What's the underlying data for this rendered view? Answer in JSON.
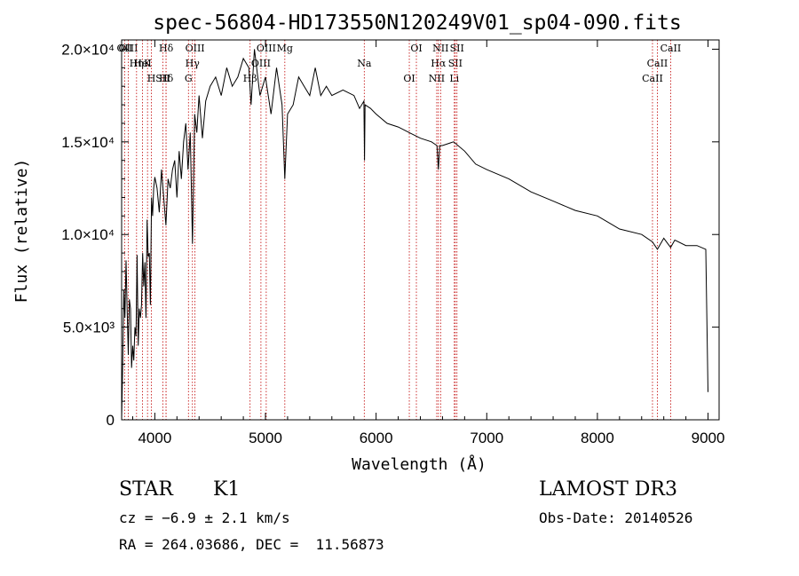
{
  "chart_data": {
    "type": "line",
    "title": "spec-56804-HD173550N120249V01_sp04-090.fits",
    "xlabel": "Wavelength (Å)",
    "ylabel": "Flux (relative)",
    "xlim": [
      3700,
      9100
    ],
    "ylim": [
      0,
      20500
    ],
    "xticks": [
      4000,
      5000,
      6000,
      7000,
      8000,
      9000
    ],
    "yticks": [
      {
        "value": 0,
        "label": "0"
      },
      {
        "value": 5000,
        "label": "5.0×10³"
      },
      {
        "value": 10000,
        "label": "1.0×10⁴"
      },
      {
        "value": 15000,
        "label": "1.5×10⁴"
      },
      {
        "value": 20000,
        "label": "2.0×10⁴"
      }
    ],
    "series": [
      {
        "color": "#000000",
        "x": [
          3700,
          3710,
          3720,
          3730,
          3740,
          3750,
          3760,
          3770,
          3780,
          3790,
          3800,
          3810,
          3820,
          3830,
          3840,
          3850,
          3860,
          3870,
          3880,
          3890,
          3900,
          3910,
          3920,
          3930,
          3940,
          3950,
          3960,
          3970,
          3980,
          3990,
          4000,
          4020,
          4040,
          4060,
          4080,
          4100,
          4120,
          4140,
          4160,
          4180,
          4200,
          4220,
          4240,
          4260,
          4280,
          4300,
          4320,
          4340,
          4360,
          4380,
          4400,
          4430,
          4460,
          4500,
          4550,
          4600,
          4650,
          4700,
          4750,
          4800,
          4850,
          4870,
          4900,
          4950,
          5000,
          5050,
          5100,
          5150,
          5175,
          5200,
          5250,
          5300,
          5350,
          5400,
          5450,
          5500,
          5550,
          5600,
          5700,
          5800,
          5850,
          5890,
          5895,
          5900,
          5950,
          6000,
          6100,
          6200,
          6300,
          6400,
          6500,
          6550,
          6563,
          6575,
          6600,
          6700,
          6800,
          6900,
          7000,
          7200,
          7400,
          7600,
          7800,
          8000,
          8200,
          8400,
          8498,
          8542,
          8600,
          8662,
          8700,
          8800,
          8900,
          8980,
          9000
        ],
        "y": [
          0,
          3000,
          7000,
          5500,
          8600,
          6000,
          3500,
          6500,
          6000,
          2800,
          4000,
          3200,
          5000,
          4500,
          8900,
          4000,
          6000,
          5500,
          6200,
          9000,
          7200,
          8500,
          5500,
          10800,
          8800,
          9000,
          6200,
          12000,
          11000,
          12500,
          13100,
          12500,
          11200,
          13500,
          12000,
          10500,
          13000,
          12500,
          13500,
          14000,
          12000,
          14500,
          13000,
          15000,
          16000,
          13500,
          15500,
          9500,
          16500,
          15500,
          17500,
          15200,
          17200,
          18000,
          18500,
          17500,
          19000,
          18000,
          18500,
          19500,
          19000,
          17000,
          20000,
          17500,
          18500,
          16500,
          19000,
          17000,
          13000,
          16500,
          17000,
          18500,
          18000,
          17500,
          19000,
          17500,
          18000,
          17500,
          17800,
          17500,
          16800,
          17200,
          14000,
          17000,
          16800,
          16500,
          16000,
          15800,
          15500,
          15200,
          15000,
          14800,
          13500,
          14800,
          14800,
          15000,
          14500,
          13800,
          13500,
          13000,
          12300,
          11800,
          11300,
          11000,
          10300,
          10000,
          9600,
          9200,
          9800,
          9300,
          9700,
          9400,
          9400,
          9200,
          1500
        ]
      }
    ],
    "line_annotations": [
      {
        "label": "Hδ",
        "x": 4102
      },
      {
        "label": "K",
        "x": 3934
      },
      {
        "label": "Hδ",
        "x": 4102
      },
      {
        "label": "OII",
        "x": 3727
      },
      {
        "label": "HeI",
        "x": 3889
      },
      {
        "label": "SII",
        "x": 4072
      },
      {
        "label": "OIII",
        "x": 3760
      },
      {
        "label": "Hη",
        "x": 3835
      },
      {
        "label": "H",
        "x": 3969
      },
      {
        "label": "OIII",
        "x": 4363
      },
      {
        "label": "Hγ",
        "x": 4340
      },
      {
        "label": "G",
        "x": 4304
      },
      {
        "label": "OIII",
        "x": 5007
      },
      {
        "label": "OIII",
        "x": 4959
      },
      {
        "label": "Hβ",
        "x": 4861
      },
      {
        "label": "Mg",
        "x": 5175
      },
      {
        "label": "Na",
        "x": 5893
      },
      {
        "label": "OI",
        "x": 6300
      },
      {
        "label": "OI",
        "x": 6364
      },
      {
        "label": "Hα",
        "x": 6563
      },
      {
        "label": "NII",
        "x": 6548
      },
      {
        "label": "NII",
        "x": 6583
      },
      {
        "label": "SII",
        "x": 6716
      },
      {
        "label": "Li",
        "x": 6707
      },
      {
        "label": "SII",
        "x": 6731
      },
      {
        "label": "CaII",
        "x": 8542
      },
      {
        "label": "CaII",
        "x": 8498
      },
      {
        "label": "CaII",
        "x": 8662
      }
    ]
  },
  "info": {
    "object_type": "STAR",
    "subclass": "K1",
    "survey": "LAMOST DR3",
    "cz": "cz = −6.9 ± 2.1 km/s",
    "obs_date": "Obs-Date: 20140526",
    "coords": "RA = 264.03686, DEC =  11.56873"
  }
}
